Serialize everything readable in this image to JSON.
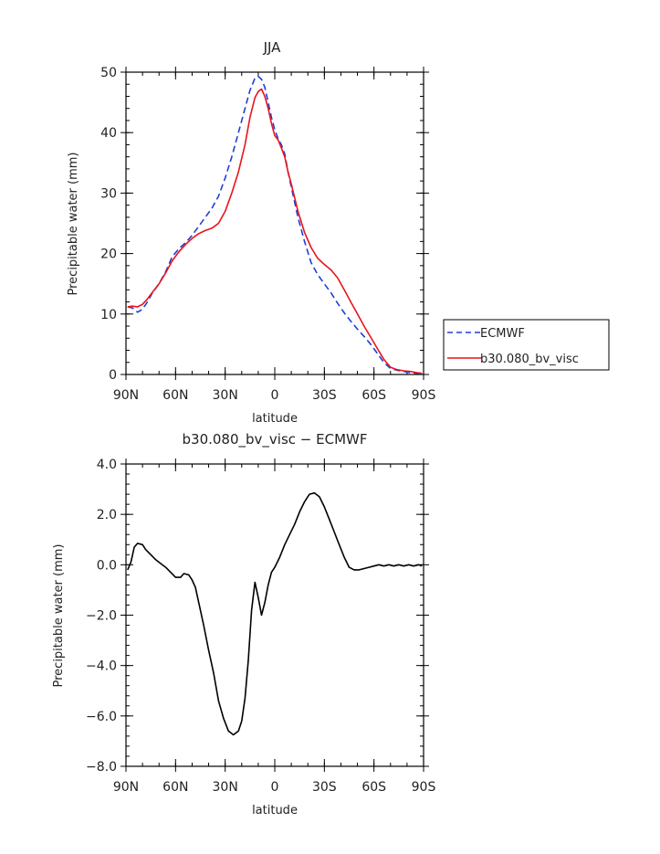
{
  "chart_data": [
    {
      "type": "line",
      "title": "JJA",
      "xlabel": "latitude",
      "ylabel": "Precipitable water (mm)",
      "xlim": [
        90,
        -90
      ],
      "ylim": [
        0,
        50
      ],
      "xticks": [
        {
          "v": 90,
          "label": "90N"
        },
        {
          "v": 60,
          "label": "60N"
        },
        {
          "v": 30,
          "label": "30N"
        },
        {
          "v": 0,
          "label": "0"
        },
        {
          "v": -30,
          "label": "30S"
        },
        {
          "v": -60,
          "label": "60S"
        },
        {
          "v": -90,
          "label": "90S"
        }
      ],
      "yticks": [
        {
          "v": 0,
          "label": "0"
        },
        {
          "v": 10,
          "label": "10"
        },
        {
          "v": 20,
          "label": "20"
        },
        {
          "v": 30,
          "label": "30"
        },
        {
          "v": 40,
          "label": "40"
        },
        {
          "v": 50,
          "label": "50"
        }
      ],
      "legend_position": "right-outside",
      "series": [
        {
          "name": "ECMWF",
          "color": "#1f3fd6",
          "style": "dashed",
          "x": [
            89,
            86,
            83,
            80,
            77,
            74,
            70,
            66,
            62,
            58,
            54,
            50,
            46,
            42,
            38,
            34,
            30,
            26,
            22,
            18,
            15,
            12,
            10,
            8,
            6,
            4,
            2,
            0,
            -2,
            -4,
            -6,
            -8,
            -10,
            -14,
            -18,
            -22,
            -26,
            -30,
            -34,
            -38,
            -42,
            -46,
            -50,
            -54,
            -58,
            -62,
            -66,
            -70,
            -74,
            -78,
            -82,
            -86,
            -89
          ],
          "y": [
            11.2,
            11.0,
            10.3,
            10.8,
            12.0,
            13.5,
            15.0,
            17.0,
            19.5,
            20.8,
            21.8,
            23.0,
            24.5,
            26.0,
            27.5,
            29.5,
            32.5,
            36.0,
            40.0,
            44.0,
            47.0,
            49.0,
            49.3,
            48.8,
            47.5,
            45.0,
            42.5,
            40.5,
            39.0,
            38.0,
            36.5,
            33.5,
            31.0,
            26.0,
            22.0,
            18.5,
            16.5,
            15.0,
            13.5,
            11.8,
            10.2,
            8.8,
            7.5,
            6.3,
            5.0,
            3.5,
            2.0,
            1.0,
            0.7,
            0.5,
            0.3,
            0.2,
            0.1
          ]
        },
        {
          "name": "b30.080_bv_visc",
          "color": "#e8141b",
          "style": "solid",
          "x": [
            89,
            86,
            83,
            80,
            77,
            74,
            70,
            66,
            62,
            58,
            54,
            50,
            46,
            42,
            38,
            34,
            30,
            26,
            22,
            18,
            15,
            12,
            10,
            8,
            6,
            4,
            2,
            0,
            -2,
            -4,
            -6,
            -8,
            -10,
            -14,
            -18,
            -22,
            -26,
            -30,
            -34,
            -38,
            -42,
            -46,
            -50,
            -54,
            -58,
            -62,
            -66,
            -70,
            -74,
            -78,
            -82,
            -86,
            -89
          ],
          "y": [
            11.2,
            11.3,
            11.2,
            11.6,
            12.5,
            13.6,
            15.0,
            16.8,
            18.8,
            20.3,
            21.5,
            22.5,
            23.3,
            23.8,
            24.2,
            25.0,
            27.0,
            30.0,
            33.5,
            38.0,
            42.5,
            45.8,
            46.8,
            47.2,
            46.0,
            44.0,
            41.5,
            39.5,
            38.8,
            37.5,
            36.0,
            33.5,
            31.5,
            27.0,
            23.5,
            21.0,
            19.2,
            18.2,
            17.3,
            16.0,
            14.0,
            12.0,
            10.0,
            8.0,
            6.2,
            4.3,
            2.5,
            1.2,
            0.8,
            0.6,
            0.5,
            0.3,
            0.2
          ]
        }
      ]
    },
    {
      "type": "line",
      "title": "b30.080_bv_visc − ECMWF",
      "xlabel": "latitude",
      "ylabel": "Precipitable water (mm)",
      "xlim": [
        90,
        -90
      ],
      "ylim": [
        -8,
        4
      ],
      "xticks": [
        {
          "v": 90,
          "label": "90N"
        },
        {
          "v": 60,
          "label": "60N"
        },
        {
          "v": 30,
          "label": "30N"
        },
        {
          "v": 0,
          "label": "0"
        },
        {
          "v": -30,
          "label": "30S"
        },
        {
          "v": -60,
          "label": "60S"
        },
        {
          "v": -90,
          "label": "90S"
        }
      ],
      "yticks": [
        {
          "v": 4,
          "label": "4.0"
        },
        {
          "v": 2,
          "label": "2.0"
        },
        {
          "v": 0,
          "label": "0.0"
        },
        {
          "v": -2,
          "label": "−2.0"
        },
        {
          "v": -4,
          "label": "−4.0"
        },
        {
          "v": -6,
          "label": "−6.0"
        },
        {
          "v": -8,
          "label": "−8.0"
        }
      ],
      "series": [
        {
          "color": "#000000",
          "style": "solid",
          "x": [
            89,
            87,
            85,
            83,
            80,
            78,
            75,
            72,
            69,
            66,
            63,
            60,
            57,
            55,
            52,
            50,
            48,
            46,
            43,
            40,
            37,
            34,
            31,
            28,
            25,
            22,
            20,
            18,
            16,
            14,
            12,
            10,
            8,
            6,
            4,
            2,
            0,
            -3,
            -6,
            -9,
            -12,
            -15,
            -18,
            -21,
            -24,
            -27,
            -30,
            -33,
            -36,
            -39,
            -42,
            -45,
            -48,
            -51,
            -54,
            -57,
            -60,
            -63,
            -66,
            -69,
            -72,
            -75,
            -78,
            -81,
            -84,
            -87,
            -89
          ],
          "y": [
            -0.2,
            0.1,
            0.7,
            0.85,
            0.8,
            0.6,
            0.4,
            0.2,
            0.05,
            -0.1,
            -0.3,
            -0.5,
            -0.5,
            -0.35,
            -0.4,
            -0.6,
            -0.9,
            -1.5,
            -2.4,
            -3.4,
            -4.3,
            -5.4,
            -6.1,
            -6.6,
            -6.75,
            -6.6,
            -6.2,
            -5.3,
            -3.8,
            -1.8,
            -0.7,
            -1.3,
            -2.0,
            -1.5,
            -0.8,
            -0.3,
            -0.1,
            0.3,
            0.8,
            1.2,
            1.6,
            2.1,
            2.5,
            2.8,
            2.85,
            2.7,
            2.3,
            1.8,
            1.3,
            0.8,
            0.3,
            -0.1,
            -0.2,
            -0.2,
            -0.15,
            -0.1,
            -0.05,
            0.0,
            -0.05,
            0.0,
            -0.05,
            0.0,
            -0.05,
            0.0,
            -0.05,
            0.0,
            -0.05
          ]
        }
      ]
    }
  ]
}
